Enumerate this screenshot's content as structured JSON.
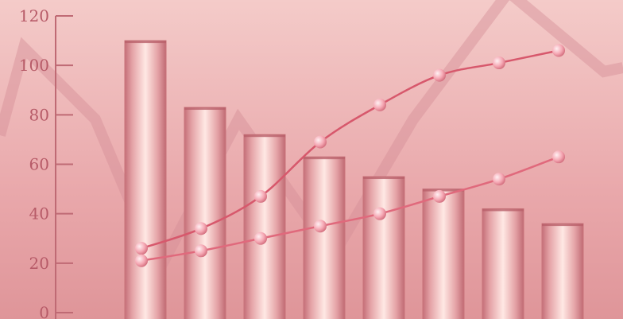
{
  "chart_data": {
    "type": "bar",
    "title": "",
    "xlabel": "",
    "ylabel": "",
    "ylim": [
      0,
      120
    ],
    "yticks": [
      0,
      20,
      40,
      60,
      80,
      100,
      120
    ],
    "grid": false,
    "legend": "none",
    "categories": [
      "",
      "",
      "",
      "",
      "",
      "",
      "",
      ""
    ],
    "series": [
      {
        "type": "bar",
        "values": [
          110,
          83,
          72,
          63,
          55,
          50,
          42,
          36
        ]
      },
      {
        "type": "line",
        "values": [
          26,
          34,
          47,
          69,
          84,
          96,
          101,
          106
        ]
      },
      {
        "type": "line",
        "values": [
          21,
          25,
          30,
          35,
          40,
          47,
          54,
          63
        ]
      }
    ],
    "colors": {
      "background_top": "#f2c6c5",
      "background_bottom": "#dd8f94",
      "bar_edge": "#c9747b",
      "bar_highlight": "#ffe6e3",
      "axis": "#bf6a74",
      "tick_text": "#b75b68",
      "line_upper": "#d7586c",
      "line_lower": "#e0697c",
      "marker": "#f6a9b5",
      "background_zigzag": "#d48d97"
    }
  }
}
